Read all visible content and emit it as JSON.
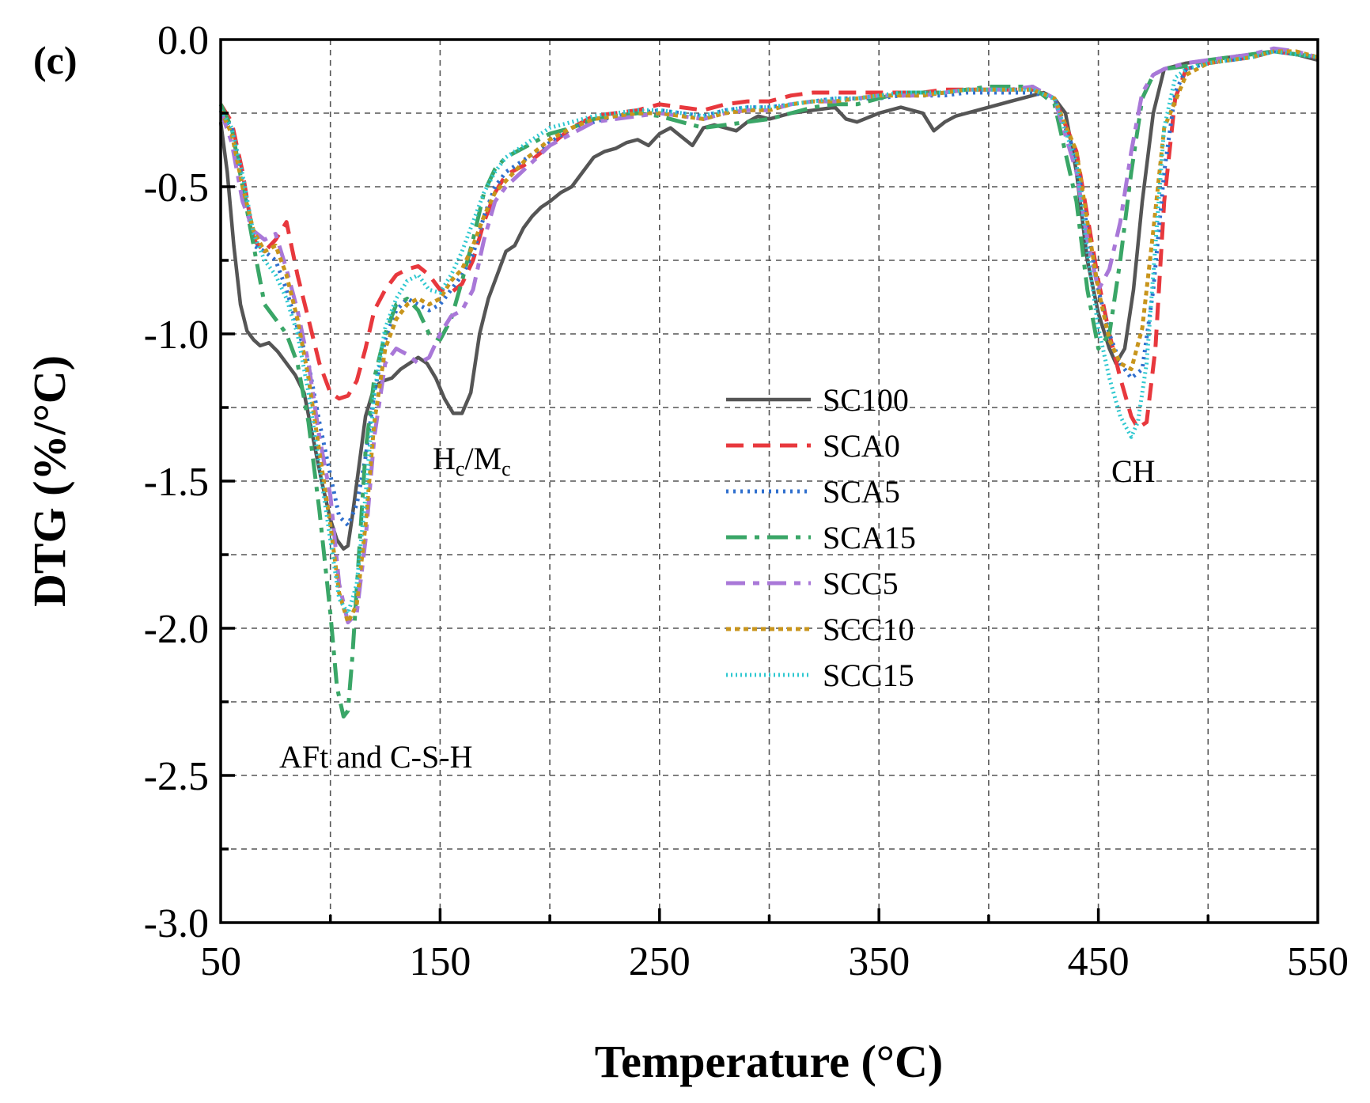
{
  "chart_data": {
    "type": "line",
    "panel_label": "(c)",
    "xlabel": "Temperature (°C)",
    "ylabel": "DTG (%/°C)",
    "xlim": [
      50,
      550
    ],
    "ylim": [
      -3.0,
      0.0
    ],
    "xticks": [
      50,
      150,
      250,
      350,
      450,
      550
    ],
    "xtick_labels": [
      "50",
      "150",
      "250",
      "350",
      "450",
      "550"
    ],
    "yticks": [
      0.0,
      -0.5,
      -1.0,
      -1.5,
      -2.0,
      -2.5,
      -3.0
    ],
    "ytick_labels": [
      "0.0",
      "-0.5",
      "-1.0",
      "-1.5",
      "-2.0",
      "-2.5",
      "-3.0"
    ],
    "grid": true,
    "legend_position": "center",
    "annotations": [
      {
        "id": "aft",
        "text": "AFt and C-S-H",
        "x": 117,
        "y": -2.43
      },
      {
        "id": "hcmc",
        "text_main1": "H",
        "text_sub1": "c",
        "text_main2": "/M",
        "text_sub2": "c",
        "x": 172,
        "y": -1.46
      },
      {
        "id": "ch",
        "text": "CH",
        "x": 469,
        "y": -1.48
      }
    ],
    "series": [
      {
        "name": "SC100",
        "color": "#555555",
        "dash": "",
        "x": [
          50,
          53,
          56,
          59,
          62,
          65,
          68,
          72,
          76,
          80,
          84,
          88,
          92,
          96,
          100,
          103,
          106,
          108,
          110,
          113,
          116,
          120,
          124,
          128,
          132,
          136,
          140,
          144,
          148,
          152,
          156,
          160,
          164,
          168,
          172,
          176,
          180,
          184,
          188,
          192,
          196,
          200,
          205,
          210,
          215,
          220,
          225,
          230,
          235,
          240,
          245,
          250,
          255,
          260,
          265,
          270,
          275,
          280,
          285,
          290,
          295,
          300,
          310,
          320,
          330,
          335,
          340,
          350,
          360,
          370,
          375,
          380,
          385,
          390,
          395,
          400,
          405,
          410,
          415,
          420,
          425,
          430,
          435,
          440,
          445,
          450,
          455,
          458,
          462,
          466,
          470,
          475,
          480,
          485,
          490,
          500,
          510,
          520,
          530,
          540,
          550
        ],
        "y": [
          -0.28,
          -0.45,
          -0.7,
          -0.9,
          -0.99,
          -1.02,
          -1.04,
          -1.03,
          -1.06,
          -1.1,
          -1.14,
          -1.2,
          -1.35,
          -1.5,
          -1.63,
          -1.7,
          -1.73,
          -1.72,
          -1.62,
          -1.45,
          -1.28,
          -1.18,
          -1.16,
          -1.15,
          -1.12,
          -1.1,
          -1.08,
          -1.1,
          -1.15,
          -1.22,
          -1.27,
          -1.27,
          -1.2,
          -1.0,
          -0.88,
          -0.8,
          -0.72,
          -0.7,
          -0.64,
          -0.6,
          -0.57,
          -0.55,
          -0.52,
          -0.5,
          -0.45,
          -0.4,
          -0.38,
          -0.37,
          -0.35,
          -0.34,
          -0.36,
          -0.32,
          -0.3,
          -0.33,
          -0.36,
          -0.3,
          -0.29,
          -0.3,
          -0.31,
          -0.28,
          -0.26,
          -0.27,
          -0.25,
          -0.24,
          -0.23,
          -0.27,
          -0.28,
          -0.25,
          -0.23,
          -0.25,
          -0.31,
          -0.28,
          -0.26,
          -0.25,
          -0.24,
          -0.23,
          -0.22,
          -0.21,
          -0.2,
          -0.19,
          -0.18,
          -0.2,
          -0.25,
          -0.45,
          -0.75,
          -0.93,
          -1.05,
          -1.1,
          -1.05,
          -0.85,
          -0.55,
          -0.25,
          -0.1,
          -0.09,
          -0.08,
          -0.07,
          -0.06,
          -0.05,
          -0.04,
          -0.05,
          -0.07
        ]
      },
      {
        "name": "SCA0",
        "color": "#e8383d",
        "dash": "22 12",
        "x": [
          50,
          55,
          60,
          65,
          70,
          75,
          80,
          85,
          90,
          95,
          100,
          104,
          108,
          112,
          116,
          120,
          125,
          130,
          135,
          140,
          145,
          150,
          155,
          160,
          165,
          170,
          175,
          180,
          190,
          200,
          210,
          220,
          230,
          240,
          250,
          260,
          270,
          280,
          290,
          300,
          310,
          320,
          330,
          340,
          350,
          360,
          370,
          380,
          390,
          400,
          410,
          420,
          430,
          440,
          445,
          450,
          455,
          460,
          465,
          468,
          472,
          476,
          480,
          485,
          490,
          500,
          510,
          520,
          530,
          540,
          550
        ],
        "y": [
          -0.22,
          -0.28,
          -0.45,
          -0.68,
          -0.72,
          -0.68,
          -0.62,
          -0.8,
          -0.95,
          -1.1,
          -1.2,
          -1.22,
          -1.21,
          -1.16,
          -1.05,
          -0.92,
          -0.85,
          -0.8,
          -0.78,
          -0.77,
          -0.8,
          -0.85,
          -0.86,
          -0.83,
          -0.75,
          -0.62,
          -0.52,
          -0.46,
          -0.42,
          -0.36,
          -0.3,
          -0.26,
          -0.25,
          -0.24,
          -0.22,
          -0.23,
          -0.24,
          -0.22,
          -0.21,
          -0.21,
          -0.19,
          -0.18,
          -0.18,
          -0.18,
          -0.18,
          -0.18,
          -0.18,
          -0.17,
          -0.17,
          -0.17,
          -0.17,
          -0.17,
          -0.2,
          -0.38,
          -0.6,
          -0.82,
          -1.0,
          -1.15,
          -1.28,
          -1.32,
          -1.3,
          -1.05,
          -0.55,
          -0.2,
          -0.1,
          -0.08,
          -0.07,
          -0.06,
          -0.04,
          -0.05,
          -0.06
        ]
      },
      {
        "name": "SCA5",
        "color": "#2f6fce",
        "dash": "3 6",
        "x": [
          50,
          55,
          60,
          65,
          70,
          75,
          80,
          85,
          90,
          95,
          100,
          104,
          108,
          112,
          116,
          120,
          125,
          130,
          135,
          140,
          145,
          150,
          155,
          160,
          165,
          170,
          175,
          180,
          190,
          200,
          210,
          220,
          230,
          240,
          250,
          260,
          270,
          280,
          290,
          300,
          310,
          320,
          330,
          340,
          350,
          360,
          370,
          380,
          390,
          400,
          410,
          420,
          430,
          440,
          445,
          450,
          455,
          460,
          465,
          470,
          475,
          480,
          485,
          490,
          500,
          510,
          520,
          530,
          540,
          550
        ],
        "y": [
          -0.24,
          -0.3,
          -0.48,
          -0.7,
          -0.72,
          -0.75,
          -0.85,
          -0.98,
          -1.1,
          -1.3,
          -1.48,
          -1.62,
          -1.65,
          -1.58,
          -1.42,
          -1.2,
          -1.02,
          -0.92,
          -0.88,
          -0.9,
          -0.92,
          -0.9,
          -0.85,
          -0.8,
          -0.73,
          -0.6,
          -0.5,
          -0.45,
          -0.4,
          -0.35,
          -0.3,
          -0.28,
          -0.26,
          -0.25,
          -0.24,
          -0.25,
          -0.26,
          -0.24,
          -0.23,
          -0.23,
          -0.22,
          -0.21,
          -0.2,
          -0.2,
          -0.2,
          -0.19,
          -0.19,
          -0.19,
          -0.18,
          -0.18,
          -0.18,
          -0.18,
          -0.2,
          -0.4,
          -0.65,
          -0.85,
          -1.0,
          -1.1,
          -1.15,
          -1.12,
          -0.85,
          -0.45,
          -0.18,
          -0.1,
          -0.08,
          -0.07,
          -0.06,
          -0.04,
          -0.05,
          -0.06
        ]
      },
      {
        "name": "SCA15",
        "color": "#3aa667",
        "dash": "26 10 6 10",
        "x": [
          50,
          55,
          60,
          65,
          70,
          75,
          80,
          85,
          90,
          95,
          100,
          103,
          106,
          108,
          110,
          113,
          116,
          120,
          125,
          130,
          135,
          140,
          145,
          150,
          155,
          160,
          165,
          170,
          175,
          180,
          190,
          200,
          210,
          220,
          230,
          240,
          250,
          260,
          270,
          280,
          290,
          300,
          310,
          320,
          330,
          340,
          350,
          360,
          370,
          380,
          390,
          400,
          410,
          420,
          430,
          440,
          445,
          450,
          455,
          460,
          465,
          470,
          475,
          480,
          490,
          500,
          510,
          520,
          530,
          540,
          550
        ],
        "y": [
          -0.22,
          -0.3,
          -0.5,
          -0.7,
          -0.9,
          -0.95,
          -1.0,
          -1.1,
          -1.3,
          -1.6,
          -1.95,
          -2.2,
          -2.3,
          -2.28,
          -2.1,
          -1.75,
          -1.4,
          -1.15,
          -1.0,
          -0.9,
          -0.88,
          -0.92,
          -1.0,
          -1.02,
          -0.95,
          -0.82,
          -0.68,
          -0.52,
          -0.44,
          -0.4,
          -0.36,
          -0.32,
          -0.3,
          -0.27,
          -0.26,
          -0.25,
          -0.26,
          -0.28,
          -0.3,
          -0.29,
          -0.28,
          -0.27,
          -0.25,
          -0.23,
          -0.22,
          -0.22,
          -0.2,
          -0.18,
          -0.18,
          -0.18,
          -0.17,
          -0.16,
          -0.16,
          -0.16,
          -0.22,
          -0.55,
          -0.85,
          -1.05,
          -1.0,
          -0.75,
          -0.45,
          -0.2,
          -0.12,
          -0.1,
          -0.09,
          -0.07,
          -0.06,
          -0.05,
          -0.04,
          -0.05,
          -0.06
        ]
      },
      {
        "name": "SCC5",
        "color": "#a978d8",
        "dash": "24 10 8 10",
        "x": [
          50,
          55,
          60,
          65,
          70,
          75,
          80,
          85,
          90,
          95,
          100,
          104,
          108,
          112,
          116,
          120,
          125,
          130,
          135,
          140,
          145,
          150,
          155,
          160,
          165,
          170,
          175,
          180,
          190,
          200,
          210,
          220,
          230,
          240,
          250,
          260,
          270,
          280,
          290,
          300,
          310,
          320,
          330,
          340,
          350,
          360,
          370,
          380,
          390,
          400,
          410,
          420,
          430,
          440,
          445,
          450,
          455,
          460,
          465,
          470,
          475,
          480,
          490,
          500,
          510,
          520,
          530,
          540,
          550
        ],
        "y": [
          -0.24,
          -0.35,
          -0.55,
          -0.65,
          -0.68,
          -0.66,
          -0.78,
          -0.92,
          -1.1,
          -1.35,
          -1.55,
          -1.85,
          -1.98,
          -1.95,
          -1.7,
          -1.35,
          -1.1,
          -1.05,
          -1.07,
          -1.1,
          -1.08,
          -1.0,
          -0.94,
          -0.92,
          -0.85,
          -0.68,
          -0.55,
          -0.5,
          -0.43,
          -0.36,
          -0.32,
          -0.28,
          -0.27,
          -0.26,
          -0.25,
          -0.26,
          -0.27,
          -0.25,
          -0.24,
          -0.24,
          -0.22,
          -0.21,
          -0.21,
          -0.2,
          -0.19,
          -0.19,
          -0.19,
          -0.18,
          -0.17,
          -0.17,
          -0.17,
          -0.16,
          -0.2,
          -0.45,
          -0.68,
          -0.85,
          -0.78,
          -0.62,
          -0.38,
          -0.18,
          -0.12,
          -0.1,
          -0.08,
          -0.07,
          -0.06,
          -0.05,
          -0.03,
          -0.04,
          -0.06
        ]
      },
      {
        "name": "SCC10",
        "color": "#c8951c",
        "dash": "6 5",
        "x": [
          50,
          55,
          60,
          65,
          70,
          75,
          80,
          85,
          90,
          95,
          100,
          104,
          108,
          112,
          116,
          120,
          125,
          130,
          135,
          140,
          145,
          150,
          155,
          160,
          165,
          170,
          175,
          180,
          190,
          200,
          210,
          220,
          230,
          240,
          250,
          260,
          270,
          280,
          290,
          300,
          310,
          320,
          330,
          340,
          350,
          360,
          370,
          380,
          390,
          400,
          410,
          420,
          430,
          440,
          445,
          450,
          455,
          460,
          465,
          470,
          475,
          480,
          490,
          500,
          510,
          520,
          530,
          540,
          550
        ],
        "y": [
          -0.24,
          -0.32,
          -0.5,
          -0.65,
          -0.72,
          -0.7,
          -0.8,
          -0.95,
          -1.15,
          -1.4,
          -1.65,
          -1.88,
          -1.98,
          -1.92,
          -1.65,
          -1.3,
          -1.05,
          -0.95,
          -0.9,
          -0.88,
          -0.9,
          -0.88,
          -0.82,
          -0.78,
          -0.7,
          -0.6,
          -0.52,
          -0.48,
          -0.4,
          -0.34,
          -0.3,
          -0.27,
          -0.26,
          -0.25,
          -0.25,
          -0.26,
          -0.27,
          -0.25,
          -0.24,
          -0.24,
          -0.22,
          -0.21,
          -0.21,
          -0.2,
          -0.19,
          -0.19,
          -0.19,
          -0.18,
          -0.17,
          -0.17,
          -0.17,
          -0.17,
          -0.2,
          -0.38,
          -0.62,
          -0.85,
          -1.02,
          -1.1,
          -1.12,
          -0.98,
          -0.65,
          -0.3,
          -0.12,
          -0.08,
          -0.07,
          -0.06,
          -0.04,
          -0.04,
          -0.06
        ]
      },
      {
        "name": "SCC15",
        "color": "#2ec8d0",
        "dash": "2 4",
        "x": [
          50,
          55,
          60,
          65,
          70,
          75,
          80,
          85,
          90,
          95,
          100,
          104,
          108,
          112,
          116,
          120,
          125,
          130,
          135,
          140,
          145,
          150,
          155,
          160,
          165,
          170,
          175,
          180,
          190,
          200,
          210,
          220,
          230,
          240,
          250,
          260,
          270,
          280,
          290,
          300,
          310,
          320,
          330,
          340,
          350,
          360,
          370,
          380,
          390,
          400,
          410,
          420,
          430,
          440,
          445,
          450,
          455,
          460,
          465,
          468,
          472,
          476,
          480,
          485,
          490,
          500,
          510,
          520,
          530,
          540,
          550
        ],
        "y": [
          -0.24,
          -0.3,
          -0.46,
          -0.66,
          -0.75,
          -0.8,
          -0.88,
          -1.0,
          -1.2,
          -1.45,
          -1.7,
          -1.9,
          -1.95,
          -1.85,
          -1.55,
          -1.2,
          -0.98,
          -0.88,
          -0.82,
          -0.8,
          -0.85,
          -0.86,
          -0.8,
          -0.72,
          -0.62,
          -0.52,
          -0.45,
          -0.4,
          -0.35,
          -0.3,
          -0.28,
          -0.26,
          -0.25,
          -0.24,
          -0.24,
          -0.25,
          -0.26,
          -0.24,
          -0.23,
          -0.23,
          -0.22,
          -0.21,
          -0.2,
          -0.2,
          -0.19,
          -0.18,
          -0.18,
          -0.18,
          -0.17,
          -0.17,
          -0.17,
          -0.17,
          -0.2,
          -0.42,
          -0.72,
          -0.98,
          -1.15,
          -1.28,
          -1.35,
          -1.3,
          -1.1,
          -0.7,
          -0.3,
          -0.13,
          -0.1,
          -0.08,
          -0.07,
          -0.06,
          -0.04,
          -0.05,
          -0.06
        ]
      }
    ]
  }
}
